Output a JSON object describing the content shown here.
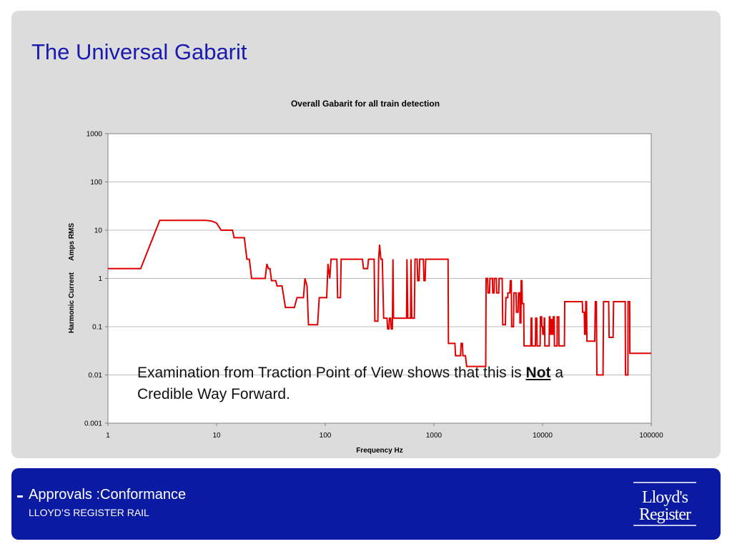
{
  "slide": {
    "title": "The Universal Gabarit",
    "annotation": {
      "text_before": "Examination from Traction Point of View shows that this is ",
      "emphasis": "Not",
      "text_after": " a  Credible Way Forward."
    }
  },
  "footer": {
    "title": "Approvals :Conformance",
    "subtitle": "LLOYD’S REGISTER RAIL",
    "logo_text_line1": "Lloyd's",
    "logo_text_line2": "Register"
  },
  "colors": {
    "title": "#1a1ab0",
    "series": "#e00000",
    "footer_bg": "#0b1aa3",
    "panel_bg": "#dcdcdc"
  },
  "chart_data": {
    "type": "line",
    "title": "Overall Gabarit for all train detection",
    "xlabel": "Frequency Hz",
    "ylabel": "Harmonic Current      Amps RMS",
    "x_scale": "log",
    "y_scale": "log",
    "xlim": [
      1,
      100000
    ],
    "ylim": [
      0.001,
      1000
    ],
    "x_ticks": [
      "1",
      "10",
      "100",
      "1000",
      "10000",
      "100000"
    ],
    "y_ticks": [
      "0.001",
      "0.01",
      "0.1",
      "1",
      "10",
      "100",
      "1000"
    ],
    "grid": "horizontal",
    "legend": "none",
    "series": [
      {
        "points": [
          [
            1,
            1.6
          ],
          [
            2,
            1.6
          ],
          [
            3,
            16
          ],
          [
            8,
            16
          ],
          [
            9,
            15.5
          ],
          [
            10,
            14
          ],
          [
            11,
            10
          ],
          [
            14,
            10
          ],
          [
            14.5,
            7
          ],
          [
            18,
            7
          ],
          [
            19,
            2.5
          ],
          [
            20,
            2.5
          ],
          [
            21,
            1
          ],
          [
            28,
            1
          ],
          [
            29,
            2
          ],
          [
            30,
            1.6
          ],
          [
            31,
            1.6
          ],
          [
            32,
            0.9
          ],
          [
            35,
            0.9
          ],
          [
            36,
            0.7
          ],
          [
            40,
            0.7
          ],
          [
            43,
            0.25
          ],
          [
            52,
            0.25
          ],
          [
            55,
            0.4
          ],
          [
            63,
            0.4
          ],
          [
            65,
            1
          ],
          [
            68,
            0.7
          ],
          [
            70,
            0.11
          ],
          [
            85,
            0.11
          ],
          [
            88,
            0.4
          ],
          [
            103,
            0.4
          ],
          [
            106,
            2
          ],
          [
            110,
            1
          ],
          [
            113,
            2.5
          ],
          [
            128,
            2.5
          ],
          [
            130,
            0.4
          ],
          [
            138,
            0.4
          ],
          [
            140,
            2.5
          ],
          [
            220,
            2.5
          ],
          [
            225,
            1.6
          ],
          [
            245,
            1.6
          ],
          [
            250,
            2.5
          ],
          [
            282,
            2.5
          ],
          [
            286,
            0.13
          ],
          [
            305,
            0.13
          ],
          [
            310,
            2.5
          ],
          [
            316,
            5
          ],
          [
            325,
            2.5
          ],
          [
            335,
            2.5
          ],
          [
            345,
            0.15
          ],
          [
            370,
            0.15
          ],
          [
            375,
            0.09
          ],
          [
            385,
            0.09
          ],
          [
            390,
            0.15
          ],
          [
            400,
            0.15
          ],
          [
            405,
            0.09
          ],
          [
            415,
            0.09
          ],
          [
            420,
            2.5
          ],
          [
            425,
            0.15
          ],
          [
            560,
            0.15
          ],
          [
            565,
            2.5
          ],
          [
            575,
            0.15
          ],
          [
            610,
            0.15
          ],
          [
            615,
            2.5
          ],
          [
            625,
            0.15
          ],
          [
            660,
            0.15
          ],
          [
            670,
            2.5
          ],
          [
            700,
            2.5
          ],
          [
            710,
            0.9
          ],
          [
            730,
            0.9
          ],
          [
            740,
            2.5
          ],
          [
            800,
            2.5
          ],
          [
            810,
            0.9
          ],
          [
            830,
            0.9
          ],
          [
            840,
            2.5
          ],
          [
            1350,
            2.5
          ],
          [
            1360,
            0.045
          ],
          [
            1560,
            0.045
          ],
          [
            1580,
            0.025
          ],
          [
            1760,
            0.025
          ],
          [
            1780,
            0.045
          ],
          [
            1830,
            0.045
          ],
          [
            1850,
            0.025
          ],
          [
            1950,
            0.025
          ],
          [
            2000,
            0.015
          ],
          [
            3000,
            0.015
          ],
          [
            3020,
            1
          ],
          [
            3120,
            1
          ],
          [
            3150,
            0.5
          ],
          [
            3250,
            0.5
          ],
          [
            3280,
            1
          ],
          [
            3460,
            1
          ],
          [
            3480,
            0.5
          ],
          [
            3580,
            0.5
          ],
          [
            3600,
            1
          ],
          [
            3750,
            1
          ],
          [
            3780,
            0.5
          ],
          [
            3950,
            0.5
          ],
          [
            3980,
            1
          ],
          [
            4250,
            1
          ],
          [
            4300,
            0.11
          ],
          [
            4550,
            0.11
          ],
          [
            4600,
            0.4
          ],
          [
            4780,
            0.4
          ],
          [
            4800,
            0.5
          ],
          [
            5000,
            0.5
          ],
          [
            5050,
            0.9
          ],
          [
            5150,
            0.9
          ],
          [
            5200,
            0.1
          ],
          [
            5400,
            0.1
          ],
          [
            5450,
            0.5
          ],
          [
            5700,
            0.5
          ],
          [
            5750,
            0.2
          ],
          [
            5950,
            0.2
          ],
          [
            6000,
            0.5
          ],
          [
            6180,
            0.5
          ],
          [
            6200,
            0.12
          ],
          [
            6320,
            0.12
          ],
          [
            6350,
            0.9
          ],
          [
            6450,
            0.9
          ],
          [
            6500,
            0.3
          ],
          [
            6700,
            0.3
          ],
          [
            6750,
            0.04
          ],
          [
            7800,
            0.04
          ],
          [
            7850,
            0.15
          ],
          [
            7950,
            0.15
          ],
          [
            8000,
            0.04
          ],
          [
            8600,
            0.04
          ],
          [
            8650,
            0.15
          ],
          [
            8850,
            0.15
          ],
          [
            8900,
            0.04
          ],
          [
            9500,
            0.04
          ],
          [
            9550,
            0.16
          ],
          [
            9800,
            0.16
          ],
          [
            9850,
            0.1
          ],
          [
            10000,
            0.1
          ],
          [
            10050,
            0.07
          ],
          [
            10300,
            0.07
          ],
          [
            10350,
            0.15
          ],
          [
            10450,
            0.15
          ],
          [
            10500,
            0.04
          ],
          [
            11500,
            0.04
          ],
          [
            11550,
            0.16
          ],
          [
            11700,
            0.16
          ],
          [
            11750,
            0.07
          ],
          [
            11950,
            0.07
          ],
          [
            12000,
            0.14
          ],
          [
            12200,
            0.14
          ],
          [
            12250,
            0.07
          ],
          [
            12500,
            0.07
          ],
          [
            12550,
            0.16
          ],
          [
            12800,
            0.16
          ],
          [
            12850,
            0.04
          ],
          [
            13600,
            0.04
          ],
          [
            13650,
            0.16
          ],
          [
            14100,
            0.16
          ],
          [
            14150,
            0.04
          ],
          [
            15900,
            0.04
          ],
          [
            16000,
            0.33
          ],
          [
            23200,
            0.33
          ],
          [
            23400,
            0.2
          ],
          [
            24200,
            0.2
          ],
          [
            24400,
            0.07
          ],
          [
            24800,
            0.07
          ],
          [
            25000,
            0.33
          ],
          [
            25400,
            0.33
          ],
          [
            25600,
            0.05
          ],
          [
            30200,
            0.05
          ],
          [
            30600,
            0.33
          ],
          [
            31300,
            0.33
          ],
          [
            31600,
            0.01
          ],
          [
            36000,
            0.01
          ],
          [
            36400,
            0.33
          ],
          [
            40600,
            0.33
          ],
          [
            41000,
            0.06
          ],
          [
            44600,
            0.06
          ],
          [
            45000,
            0.33
          ],
          [
            57600,
            0.33
          ],
          [
            58000,
            0.01
          ],
          [
            61000,
            0.01
          ],
          [
            61200,
            0.33
          ],
          [
            63400,
            0.33
          ],
          [
            63600,
            0.028
          ],
          [
            100000,
            0.028
          ]
        ]
      }
    ]
  }
}
